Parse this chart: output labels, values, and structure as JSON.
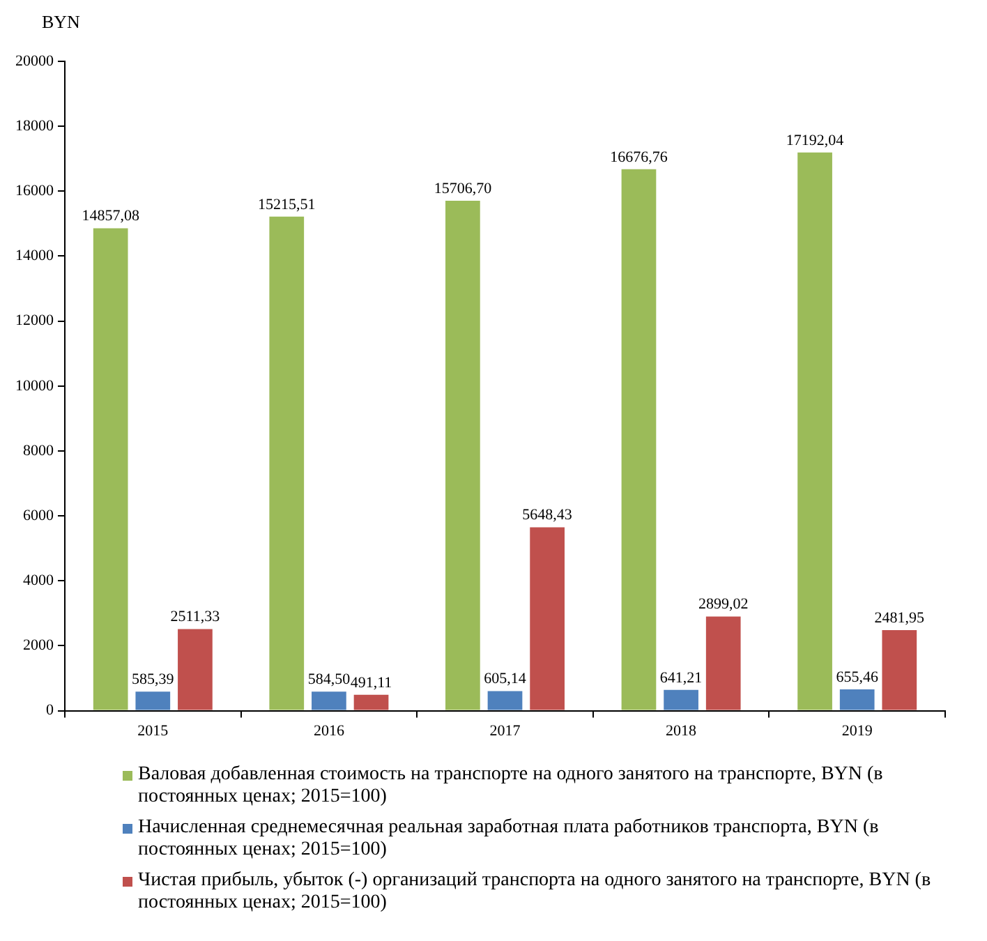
{
  "chart_data": {
    "type": "bar",
    "ylabel": "BYN",
    "categories": [
      "2015",
      "2016",
      "2017",
      "2018",
      "2019"
    ],
    "ylim": [
      0,
      20000
    ],
    "yticks": [
      0,
      2000,
      4000,
      6000,
      8000,
      10000,
      12000,
      14000,
      16000,
      18000,
      20000
    ],
    "grid": false,
    "legend": "bottom",
    "series": [
      {
        "name": "Валовая добавленная стоимость на транспорте  на одного занятого на транспорте, BYN (в постоянных ценах; 2015=100)",
        "color": "#9bbb59",
        "values": [
          14857.08,
          15215.51,
          15706.7,
          16676.76,
          17192.04
        ],
        "value_labels": [
          "14857,08",
          "15215,51",
          "15706,70",
          "16676,76",
          "17192,04"
        ]
      },
      {
        "name": "Начисленная  среднемесячная реальная заработная плата работников транспорта, BYN (в постоянных ценах; 2015=100)",
        "color": "#4f81bd",
        "values": [
          585.39,
          584.5,
          605.14,
          641.21,
          655.46
        ],
        "value_labels": [
          "585,39",
          "584,50",
          "605,14",
          "641,21",
          "655,46"
        ]
      },
      {
        "name": "Чистая прибыль, убыток (-) организаций транспорта на одного занятого на транспорте, BYN (в постоянных ценах; 2015=100)",
        "color": "#c0504d",
        "values": [
          2511.33,
          491.11,
          5648.43,
          2899.02,
          2481.95
        ],
        "value_labels": [
          "2511,33",
          "491,11",
          "5648,43",
          "2899,02",
          "2481,95"
        ]
      }
    ]
  }
}
